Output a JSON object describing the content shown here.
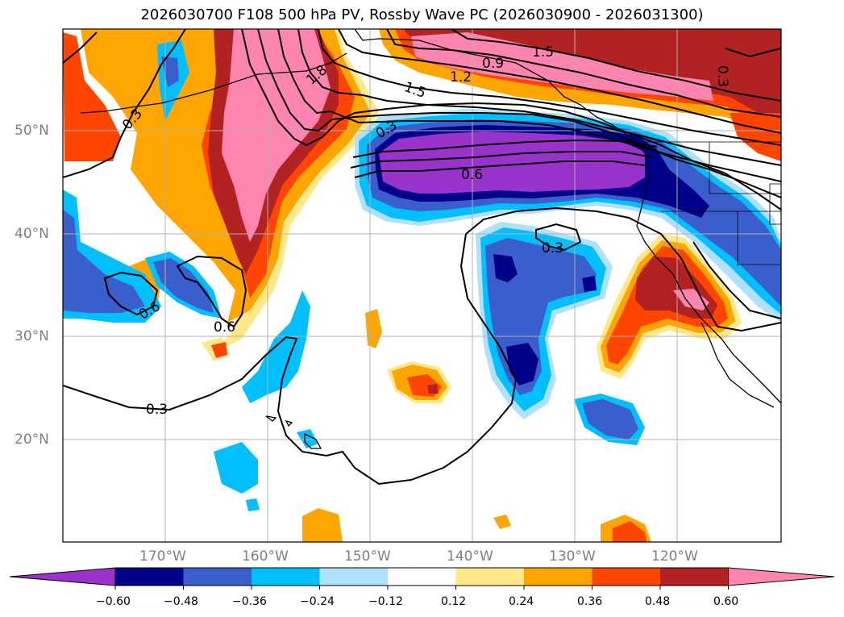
{
  "title": "2026030700 F108 500 hPa PV, Rossby Wave PC (2026030900 - 2026031300)",
  "lat_labels": [
    "50°N",
    "40°N",
    "30°N",
    "20°N"
  ],
  "lon_labels": [
    "170°W",
    "160°W",
    "150°W",
    "140°W",
    "130°W",
    "120°W"
  ],
  "contour_labels": [
    "0.3",
    "1.8",
    "0.9",
    "1.2",
    "1.5",
    "0.6",
    "0.3",
    "0.6",
    "0.6",
    "0.3",
    "0.3",
    "0.3",
    "1.5"
  ],
  "colorbar": {
    "ticks": [
      "−0.60",
      "−0.48",
      "−0.36",
      "−0.24",
      "−0.12",
      "0.12",
      "0.24",
      "0.36",
      "0.48",
      "0.60"
    ],
    "colors": [
      "#9933cc",
      "#00008b",
      "#3a5fcd",
      "#00bfff",
      "#b0e0fa",
      "#ffffff",
      "#ffe88a",
      "#ffa500",
      "#ff4500",
      "#b22222",
      "#ff85b0"
    ]
  },
  "colors": {
    "purple": "#9933cc",
    "navy": "#00008b",
    "royal": "#3a5fcd",
    "sky": "#00bfff",
    "pale_blue": "#b0e0fa",
    "pale_yellow": "#ffe88a",
    "orange": "#ffa500",
    "red_orange": "#ff4500",
    "firebrick": "#b22222",
    "pink": "#ff85b0"
  }
}
